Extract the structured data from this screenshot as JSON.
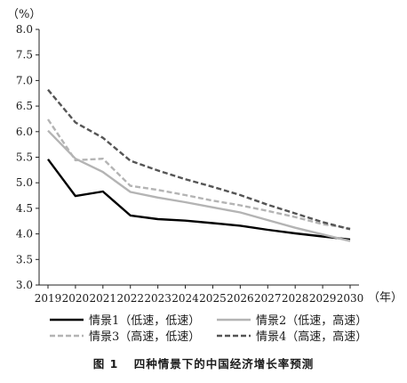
{
  "chart_data": {
    "type": "line",
    "unit_label": "（%）",
    "x_unit_label": "（年）",
    "x": [
      "2019",
      "2020",
      "2021",
      "2022",
      "2023",
      "2024",
      "2025",
      "2026",
      "2027",
      "2028",
      "2029",
      "2030"
    ],
    "ylim": [
      3.0,
      8.0
    ],
    "yticks": [
      "3.0",
      "3.5",
      "4.0",
      "4.5",
      "5.0",
      "5.5",
      "6.0",
      "6.5",
      "7.0",
      "7.5",
      "8.0"
    ],
    "grid": false,
    "legend_position": "bottom",
    "series": [
      {
        "name": "情景1（低速，低速）",
        "color": "#000000",
        "style": "solid-thick",
        "values": [
          5.46,
          4.74,
          4.83,
          4.36,
          4.29,
          4.26,
          4.21,
          4.16,
          4.08,
          4.01,
          3.95,
          3.89
        ]
      },
      {
        "name": "情景2（低速，高速）",
        "color": "#b4b4b4",
        "style": "solid-thick",
        "values": [
          6.02,
          5.47,
          5.21,
          4.82,
          4.71,
          4.62,
          4.52,
          4.42,
          4.27,
          4.12,
          3.99,
          3.86
        ]
      },
      {
        "name": "情景3（高速，低速）",
        "color": "#b4b4b4",
        "style": "dashed",
        "values": [
          6.24,
          5.44,
          5.47,
          4.94,
          4.86,
          4.76,
          4.65,
          4.56,
          4.45,
          4.33,
          4.19,
          4.11
        ]
      },
      {
        "name": "情景4（高速，高速）",
        "color": "#555555",
        "style": "dashed",
        "values": [
          6.82,
          6.18,
          5.88,
          5.43,
          5.24,
          5.07,
          4.92,
          4.76,
          4.57,
          4.4,
          4.23,
          4.09
        ]
      }
    ]
  },
  "caption": {
    "number": "图 1",
    "title": "四种情景下的中国经济增长率预测"
  }
}
